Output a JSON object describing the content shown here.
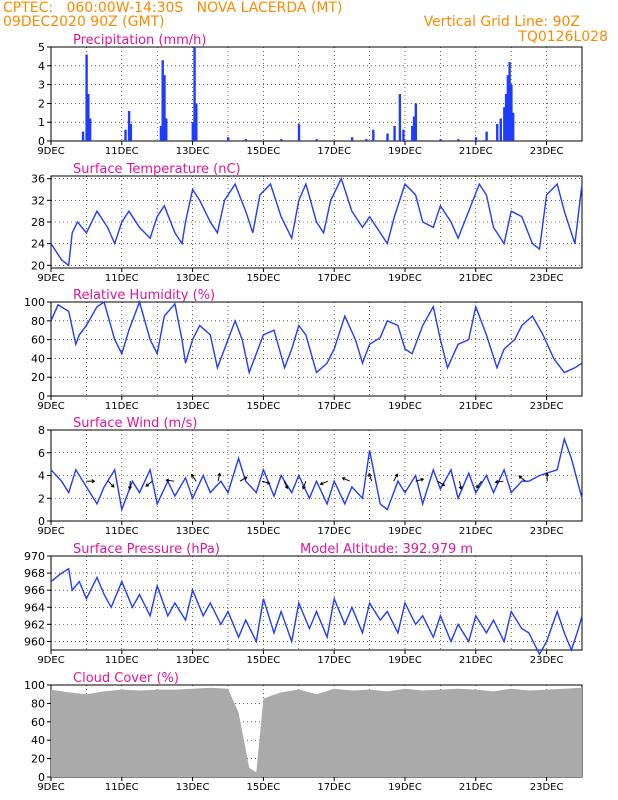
{
  "header": {
    "line1": "CPTEC:   060:00W-14:30S   NOVA LACERDA (MT)",
    "line2": "09DEC2020 90Z (GMT)",
    "grid_note": "Vertical Grid Line: 90Z",
    "code": "TQ0126L028"
  },
  "colors": {
    "header": "#ff8a00",
    "title": "#e0169b",
    "series": "#1f3cff",
    "cloud": "#aaaaaa",
    "wind_arrow": "#000000"
  },
  "x_ticks": [
    "9DEC",
    "11DEC",
    "13DEC",
    "15DEC",
    "17DEC",
    "19DEC",
    "21DEC",
    "23DEC"
  ],
  "chart_data": [
    {
      "id": "precip",
      "type": "bar",
      "title": "Precipitation (mm/h)",
      "ylim": [
        0,
        5
      ],
      "yticks": [
        0,
        1,
        2,
        3,
        4,
        5
      ],
      "x_days": [
        0,
        15
      ],
      "bars": [
        [
          0.9,
          0.5
        ],
        [
          1.0,
          4.6
        ],
        [
          1.05,
          2.5
        ],
        [
          1.1,
          1.2
        ],
        [
          2.1,
          0.6
        ],
        [
          2.2,
          1.6
        ],
        [
          2.25,
          0.9
        ],
        [
          3.1,
          0.8
        ],
        [
          3.15,
          4.3
        ],
        [
          3.2,
          3.5
        ],
        [
          3.25,
          1.2
        ],
        [
          4.0,
          1.0
        ],
        [
          4.05,
          5.0
        ],
        [
          4.1,
          2.0
        ],
        [
          5.0,
          0.2
        ],
        [
          5.5,
          0.1
        ],
        [
          6.5,
          0.1
        ],
        [
          7.0,
          0.9
        ],
        [
          7.5,
          0.1
        ],
        [
          8.5,
          0.2
        ],
        [
          8.9,
          0.1
        ],
        [
          9.1,
          0.6
        ],
        [
          9.5,
          0.4
        ],
        [
          9.7,
          0.8
        ],
        [
          9.85,
          2.5
        ],
        [
          9.95,
          0.6
        ],
        [
          10.2,
          0.8
        ],
        [
          10.25,
          1.3
        ],
        [
          10.3,
          2.0
        ],
        [
          11.0,
          0.1
        ],
        [
          11.5,
          0.1
        ],
        [
          12.0,
          0.2
        ],
        [
          12.3,
          0.5
        ],
        [
          12.6,
          0.9
        ],
        [
          12.7,
          1.2
        ],
        [
          12.8,
          1.8
        ],
        [
          12.85,
          2.5
        ],
        [
          12.9,
          3.5
        ],
        [
          12.95,
          4.2
        ],
        [
          13.0,
          3.0
        ],
        [
          13.05,
          1.5
        ]
      ]
    },
    {
      "id": "temp",
      "type": "line",
      "title": "Surface Temperature (nC)",
      "ylim": [
        19.5,
        36.5
      ],
      "yticks": [
        20,
        24,
        28,
        32,
        36
      ],
      "x_days": [
        0,
        15
      ],
      "x": [
        0,
        0.3,
        0.5,
        0.6,
        0.75,
        1.0,
        1.3,
        1.6,
        1.8,
        2.0,
        2.2,
        2.5,
        2.8,
        3.0,
        3.2,
        3.5,
        3.7,
        3.8,
        4.0,
        4.2,
        4.5,
        4.7,
        4.9,
        5.2,
        5.5,
        5.7,
        5.9,
        6.2,
        6.5,
        6.8,
        7.0,
        7.2,
        7.5,
        7.7,
        7.9,
        8.2,
        8.5,
        8.8,
        9.0,
        9.3,
        9.5,
        9.7,
        10.0,
        10.3,
        10.5,
        10.8,
        11.0,
        11.3,
        11.5,
        11.8,
        12.1,
        12.3,
        12.5,
        12.8,
        13.0,
        13.3,
        13.6,
        13.8,
        14.0,
        14.3,
        14.5,
        14.8,
        15.0
      ],
      "y": [
        24,
        21,
        20,
        26,
        28,
        26,
        30,
        27,
        24,
        28,
        30,
        27,
        25,
        29,
        31,
        26,
        24,
        28,
        34,
        32,
        28,
        26,
        32,
        35,
        30,
        26,
        33,
        35,
        29,
        25,
        32,
        35,
        28,
        26,
        32,
        36,
        30,
        27,
        29,
        26,
        24,
        29,
        35,
        33,
        28,
        27,
        31,
        28,
        25,
        30,
        35,
        33,
        27,
        24,
        30,
        29,
        24,
        23,
        33,
        35,
        30,
        24,
        35
      ]
    },
    {
      "id": "rh",
      "type": "line",
      "title": "Relative Humidity (%)",
      "ylim": [
        0,
        100
      ],
      "yticks": [
        0,
        20,
        40,
        60,
        80,
        100
      ],
      "x_days": [
        0,
        15
      ],
      "x": [
        0,
        0.2,
        0.5,
        0.7,
        0.8,
        1.0,
        1.3,
        1.5,
        1.8,
        2.0,
        2.2,
        2.5,
        2.8,
        3.0,
        3.2,
        3.5,
        3.7,
        3.8,
        4.0,
        4.2,
        4.5,
        4.7,
        4.9,
        5.2,
        5.4,
        5.6,
        5.8,
        6.0,
        6.3,
        6.6,
        6.8,
        7.0,
        7.2,
        7.5,
        7.8,
        8.0,
        8.3,
        8.6,
        8.8,
        9.0,
        9.3,
        9.5,
        9.8,
        10.0,
        10.2,
        10.5,
        10.8,
        11.0,
        11.2,
        11.5,
        11.8,
        12.0,
        12.3,
        12.6,
        12.8,
        13.1,
        13.3,
        13.6,
        13.9,
        14.2,
        14.5,
        14.8,
        15.0
      ],
      "y": [
        80,
        97,
        90,
        55,
        65,
        75,
        95,
        100,
        60,
        45,
        70,
        100,
        60,
        45,
        85,
        98,
        60,
        35,
        60,
        75,
        65,
        30,
        50,
        80,
        60,
        25,
        45,
        65,
        70,
        30,
        50,
        75,
        65,
        25,
        35,
        50,
        85,
        60,
        35,
        55,
        62,
        80,
        75,
        50,
        45,
        75,
        95,
        60,
        30,
        55,
        60,
        95,
        65,
        30,
        50,
        60,
        75,
        85,
        65,
        40,
        25,
        30,
        35
      ]
    },
    {
      "id": "wind",
      "type": "line",
      "title": "Surface Wind (m/s)",
      "ylim": [
        0,
        8
      ],
      "yticks": [
        0,
        2,
        4,
        6,
        8
      ],
      "x_days": [
        0,
        15
      ],
      "x": [
        0,
        0.3,
        0.5,
        0.7,
        1.0,
        1.3,
        1.5,
        1.8,
        2.0,
        2.3,
        2.5,
        2.8,
        3.0,
        3.3,
        3.5,
        3.8,
        4.0,
        4.3,
        4.5,
        4.8,
        5.0,
        5.3,
        5.5,
        5.8,
        6.0,
        6.3,
        6.5,
        6.8,
        7.0,
        7.3,
        7.5,
        7.8,
        8.0,
        8.3,
        8.5,
        8.8,
        9.0,
        9.3,
        9.5,
        9.8,
        10.0,
        10.3,
        10.5,
        10.8,
        11.0,
        11.3,
        11.5,
        11.8,
        12.0,
        12.3,
        12.5,
        12.8,
        13.0,
        13.3,
        13.5,
        13.8,
        14.0,
        14.3,
        14.5,
        14.7,
        15.0
      ],
      "y": [
        4.5,
        3.5,
        2.5,
        4.5,
        3,
        1.5,
        3,
        4.5,
        1,
        3.5,
        2.5,
        4.5,
        1.5,
        3.5,
        2.2,
        3.8,
        2,
        4,
        2.5,
        3.5,
        2.5,
        5.5,
        3.5,
        2.5,
        4.5,
        2.2,
        4,
        2.5,
        4,
        2,
        3.5,
        1.5,
        3.5,
        1.5,
        3,
        2,
        6.2,
        1.5,
        1,
        3.5,
        2.5,
        4,
        1.5,
        4.5,
        2.8,
        4.5,
        2,
        4.2,
        2.5,
        4,
        2.5,
        4.5,
        2.5,
        3.5,
        3.5,
        4,
        4.2,
        4.5,
        7.2,
        5.5,
        2
      ]
    },
    {
      "id": "pressure",
      "type": "line",
      "title": "Surface Pressure (hPa)",
      "annotation": "Model Altitude: 392.979 m",
      "ylim": [
        959,
        970
      ],
      "yticks": [
        960,
        962,
        964,
        966,
        968,
        970
      ],
      "x_days": [
        0,
        15
      ],
      "x": [
        0,
        0.3,
        0.5,
        0.6,
        0.8,
        1.0,
        1.3,
        1.5,
        1.7,
        2.0,
        2.3,
        2.5,
        2.8,
        3.0,
        3.3,
        3.5,
        3.8,
        4.0,
        4.3,
        4.5,
        4.8,
        5.0,
        5.3,
        5.5,
        5.8,
        6.0,
        6.3,
        6.5,
        6.8,
        7.0,
        7.3,
        7.5,
        7.8,
        8.0,
        8.3,
        8.5,
        8.8,
        9.0,
        9.3,
        9.5,
        9.8,
        10.0,
        10.3,
        10.5,
        10.8,
        11.0,
        11.3,
        11.5,
        11.8,
        12.0,
        12.3,
        12.5,
        12.8,
        13.0,
        13.3,
        13.5,
        13.8,
        14.0,
        14.3,
        14.5,
        14.7,
        14.9,
        15.0
      ],
      "y": [
        967,
        968,
        968.5,
        966,
        967,
        965,
        967.5,
        965.5,
        964,
        967,
        964,
        965.5,
        963,
        966.5,
        963,
        964.5,
        962.5,
        966,
        963,
        964.5,
        962,
        963.5,
        960.5,
        962.5,
        960,
        965,
        961,
        963.5,
        960,
        964.5,
        961.5,
        963.5,
        960.5,
        965,
        962,
        964,
        961,
        964.5,
        962.5,
        963.5,
        961,
        964.5,
        962,
        963,
        960.5,
        963,
        960,
        962,
        960,
        963,
        961,
        962.5,
        960,
        963.5,
        961.5,
        961,
        958.5,
        960,
        963.5,
        961,
        959,
        961.5,
        963
      ]
    },
    {
      "id": "cloud",
      "type": "area",
      "title": "Cloud Cover (%)",
      "ylim": [
        0,
        100
      ],
      "yticks": [
        0,
        20,
        40,
        60,
        80,
        100
      ],
      "x_days": [
        0,
        15
      ],
      "x": [
        0,
        0.5,
        1.0,
        1.5,
        2.0,
        2.5,
        3.0,
        3.5,
        4.0,
        4.5,
        5.0,
        5.3,
        5.6,
        5.8,
        6.0,
        6.2,
        6.5,
        7.0,
        7.5,
        8.0,
        8.5,
        9.0,
        9.5,
        10.0,
        10.5,
        11.0,
        11.5,
        12.0,
        12.5,
        13.0,
        13.5,
        14.0,
        14.5,
        15.0
      ],
      "y": [
        95,
        92,
        90,
        93,
        95,
        94,
        95,
        95,
        96,
        97,
        96,
        70,
        10,
        5,
        85,
        88,
        92,
        95,
        90,
        96,
        94,
        95,
        93,
        96,
        94,
        95,
        96,
        95,
        93,
        96,
        94,
        95,
        96,
        97
      ]
    }
  ]
}
